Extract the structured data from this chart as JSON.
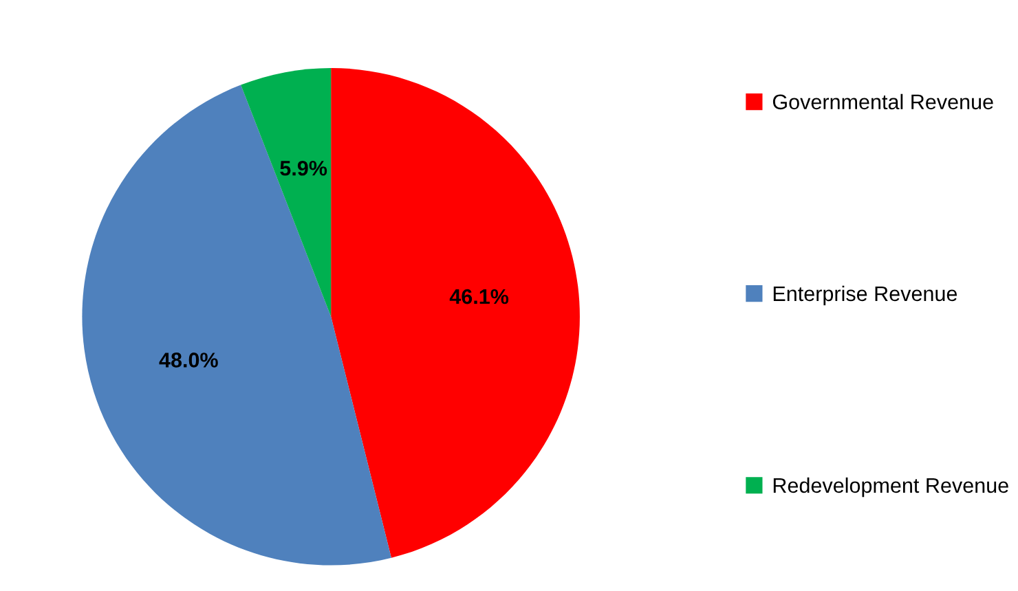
{
  "chart_data": {
    "type": "pie",
    "categories": [
      "Governmental Revenue",
      "Enterprise Revenue",
      "Redevelopment Revenue"
    ],
    "values": [
      46.1,
      48.0,
      5.9
    ],
    "colors": [
      "#ff0000",
      "#4f81bd",
      "#00b050"
    ],
    "value_labels": [
      "46.1%",
      "48.0%",
      "5.9%"
    ],
    "legend": "right"
  }
}
